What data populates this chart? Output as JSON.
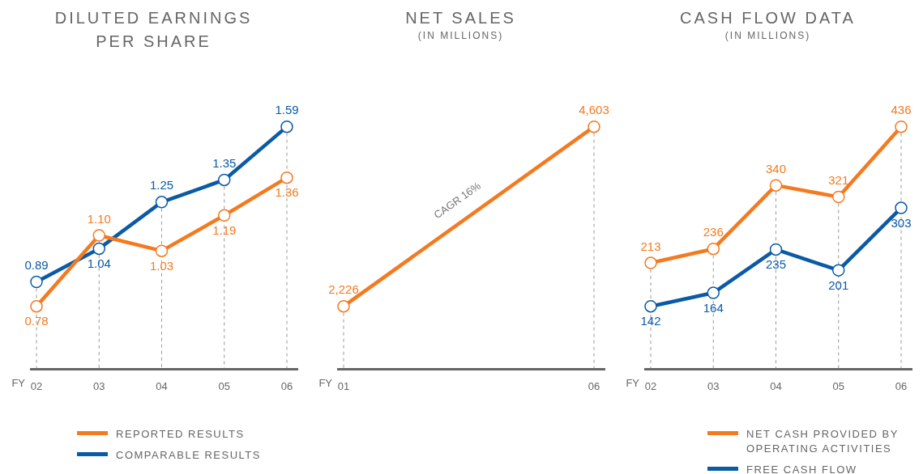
{
  "chart_data": [
    {
      "type": "line",
      "title": "DILUTED EARNINGS PER SHARE",
      "xlabel": "FY",
      "grid": "x",
      "categories": [
        "02",
        "03",
        "04",
        "05",
        "06"
      ],
      "marker": "circle",
      "legend": "bottom",
      "data_labels": true,
      "series": [
        {
          "name": "REPORTED RESULTS",
          "color": "#f47a20",
          "values": [
            0.78,
            1.1,
            1.03,
            1.19,
            1.36
          ],
          "value_labels": [
            "0.78",
            "1.10",
            "1.03",
            "1.19",
            "1.36"
          ]
        },
        {
          "name": "COMPARABLE RESULTS",
          "color": "#0b5aa6",
          "values": [
            0.89,
            1.04,
            1.25,
            1.35,
            1.59
          ],
          "value_labels": [
            "0.89",
            "1.04",
            "1.25",
            "1.35",
            "1.59"
          ]
        }
      ]
    },
    {
      "type": "line",
      "title": "NET SALES",
      "subtitle": "(IN MILLIONS)",
      "xlabel": "FY",
      "grid": "x",
      "categories": [
        "01",
        "06"
      ],
      "marker": "circle",
      "data_labels": true,
      "annotations": [
        "CAGR 16%"
      ],
      "series": [
        {
          "color": "#f47a20",
          "values": [
            2226,
            4603
          ],
          "value_labels": [
            "2,226",
            "4,603"
          ]
        }
      ]
    },
    {
      "type": "line",
      "title": "CASH FLOW DATA",
      "subtitle": "(IN MILLIONS)",
      "xlabel": "FY",
      "grid": "x",
      "categories": [
        "02",
        "03",
        "04",
        "05",
        "06"
      ],
      "marker": "circle",
      "legend": "bottom",
      "data_labels": true,
      "series": [
        {
          "name": "NET CASH PROVIDED BY OPERATING ACTIVITIES",
          "color": "#f47a20",
          "values": [
            213,
            236,
            340,
            321,
            436
          ],
          "value_labels": [
            "213",
            "236",
            "340",
            "321",
            "436"
          ]
        },
        {
          "name": "FREE CASH FLOW",
          "color": "#0b5aa6",
          "values": [
            142,
            164,
            235,
            201,
            303
          ],
          "value_labels": [
            "142",
            "164",
            "235",
            "201",
            "303"
          ]
        }
      ]
    }
  ]
}
